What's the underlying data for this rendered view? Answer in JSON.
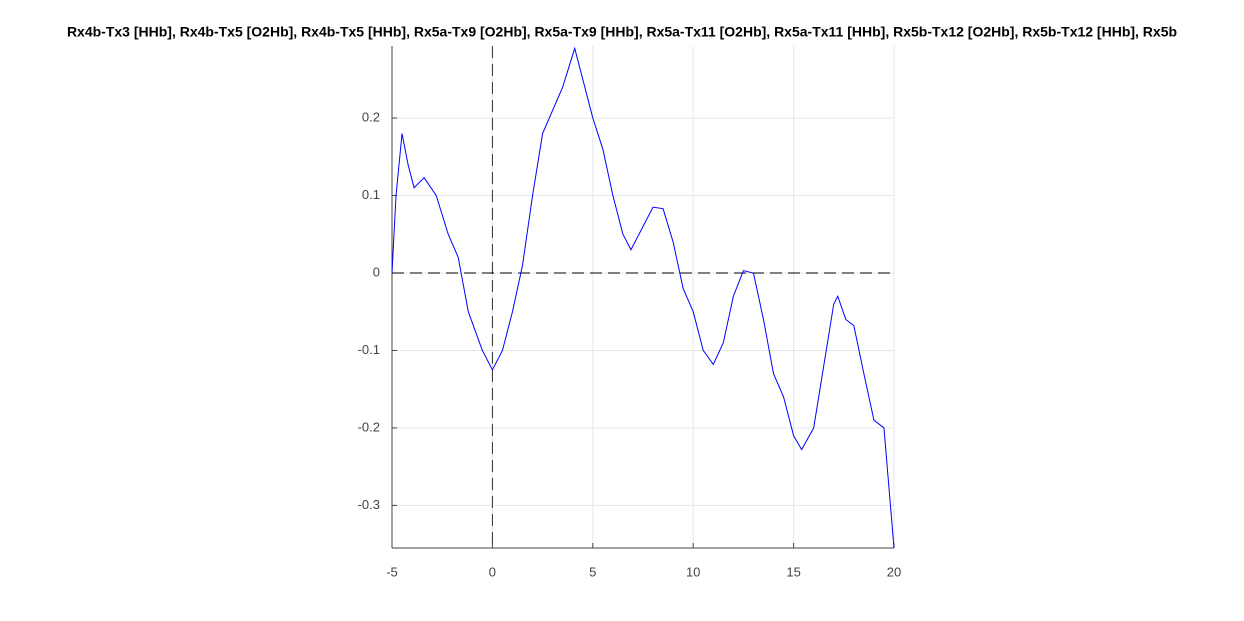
{
  "chart_data": {
    "type": "line",
    "title": "Rx4b-Tx3 [HHb], Rx4b-Tx5 [O2Hb], Rx4b-Tx5 [HHb], Rx5a-Tx9 [O2Hb], Rx5a-Tx9 [HHb], Rx5a-Tx11 [O2Hb], Rx5a-Tx11 [HHb], Rx5b-Tx12 [O2Hb], Rx5b-Tx12 [HHb], Rx5b",
    "x": [
      -5,
      -4.8,
      -4.5,
      -4.2,
      -3.9,
      -3.4,
      -2.8,
      -2.2,
      -1.7,
      -1.2,
      -0.5,
      0,
      0.5,
      1,
      1.5,
      2,
      2.5,
      3,
      3.5,
      4.1,
      4.6,
      5,
      5.5,
      6,
      6.5,
      6.9,
      7.5,
      8,
      8.5,
      9,
      9.5,
      10,
      10.5,
      11,
      11.5,
      12,
      12.5,
      13,
      13.5,
      14,
      14.5,
      15,
      15.4,
      16,
      16.5,
      17,
      17.2,
      17.6,
      18,
      18.5,
      19,
      19.5,
      20
    ],
    "series": [
      {
        "color": "#0000ff",
        "values": [
          0,
          0.1,
          0.18,
          0.14,
          0.11,
          0.123,
          0.1,
          0.05,
          0.02,
          -0.05,
          -0.1,
          -0.125,
          -0.1,
          -0.05,
          0.01,
          0.1,
          0.18,
          0.21,
          0.24,
          0.29,
          0.24,
          0.2,
          0.16,
          0.1,
          0.05,
          0.03,
          0.06,
          0.085,
          0.083,
          0.04,
          -0.02,
          -0.05,
          -0.1,
          -0.118,
          -0.09,
          -0.03,
          0.003,
          0,
          -0.06,
          -0.13,
          -0.16,
          -0.21,
          -0.228,
          -0.2,
          -0.12,
          -0.04,
          -0.03,
          -0.06,
          -0.068,
          -0.13,
          -0.19,
          -0.2,
          -0.355
        ]
      }
    ],
    "xlim": [
      -5,
      20
    ],
    "ylim": [
      -0.355,
      0.293
    ],
    "xticks": [
      -5,
      0,
      5,
      10,
      15,
      20
    ],
    "yticks": [
      -0.3,
      -0.2,
      -0.1,
      0,
      0.1,
      0.2
    ],
    "grid": true,
    "reference_lines": {
      "x": 0,
      "y": 0
    }
  }
}
